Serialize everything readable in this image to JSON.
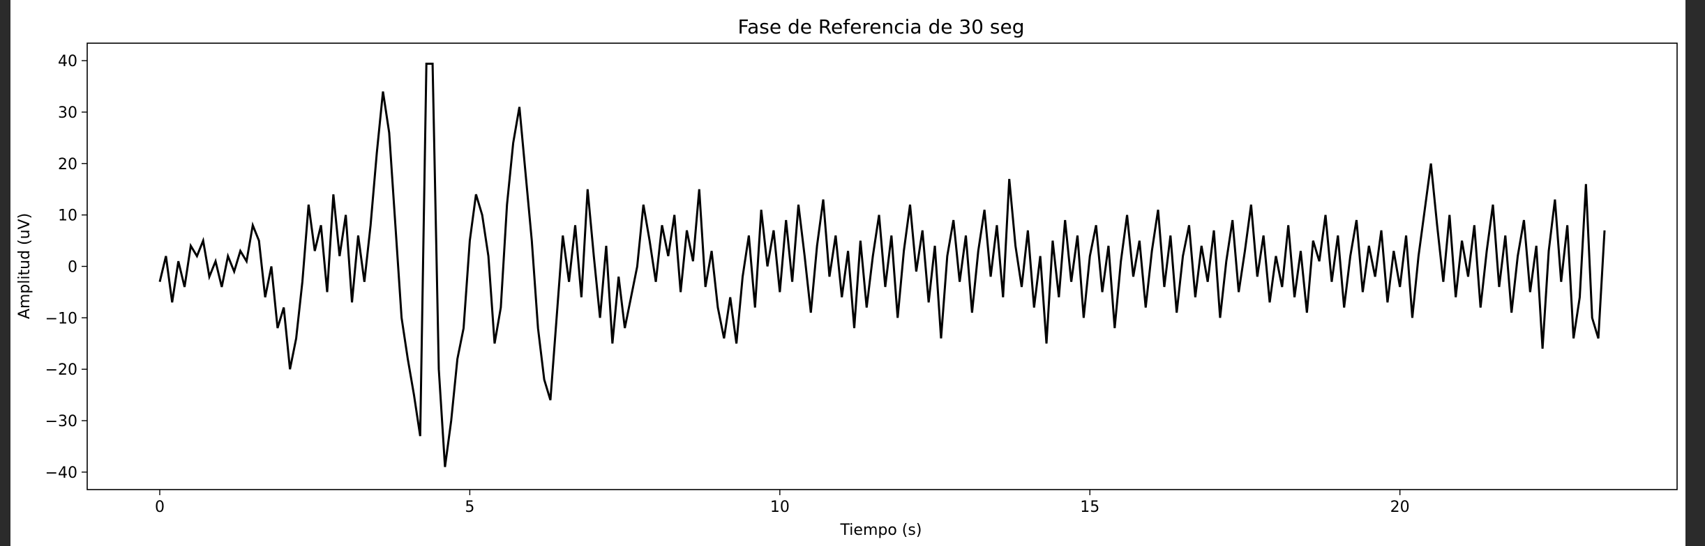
{
  "chart_data": {
    "type": "line",
    "title": "Fase de Referencia de 30 seg",
    "x_label": "Tiempo (s)",
    "y_label": "Amplitud (uV)",
    "color": "#000000",
    "x": [
      0,
      0.1,
      0.2,
      0.3,
      0.4,
      0.5,
      0.6,
      0.7,
      0.8,
      0.9,
      1,
      1.1,
      1.2,
      1.3,
      1.4,
      1.5,
      1.6,
      1.7,
      1.8,
      1.9,
      2,
      2.1,
      2.2,
      2.3,
      2.4,
      2.5,
      2.6,
      2.7,
      2.8,
      2.9,
      3,
      3.1,
      3.2,
      3.3,
      3.4,
      3.5,
      3.6,
      3.7,
      3.8,
      3.9,
      4,
      4.1,
      4.2,
      4.3,
      4.4,
      4.5,
      4.6,
      4.7,
      4.8,
      4.9,
      5,
      5.1,
      5.2,
      5.3,
      5.4,
      5.5,
      5.6,
      5.7,
      5.8,
      5.9,
      6,
      6.1,
      6.2,
      6.3,
      6.4,
      6.5,
      6.6,
      6.7,
      6.8,
      6.9,
      7,
      7.1,
      7.2,
      7.3,
      7.4,
      7.5,
      7.6,
      7.7,
      7.8,
      7.9,
      8,
      8.1,
      8.2,
      8.3,
      8.4,
      8.5,
      8.6,
      8.7,
      8.8,
      8.9,
      9,
      9.1,
      9.2,
      9.3,
      9.4,
      9.5,
      9.6,
      9.7,
      9.8,
      9.9,
      10,
      10.1,
      10.2,
      10.3,
      10.4,
      10.5,
      10.6,
      10.7,
      10.8,
      10.9,
      11,
      11.1,
      11.2,
      11.3,
      11.4,
      11.5,
      11.6,
      11.7,
      11.8,
      11.9,
      12,
      12.1,
      12.2,
      12.3,
      12.4,
      12.5,
      12.6,
      12.7,
      12.8,
      12.9,
      13,
      13.1,
      13.2,
      13.3,
      13.4,
      13.5,
      13.6,
      13.7,
      13.8,
      13.9,
      14,
      14.1,
      14.2,
      14.3,
      14.4,
      14.5,
      14.6,
      14.7,
      14.8,
      14.9,
      15,
      15.1,
      15.2,
      15.3,
      15.4,
      15.5,
      15.6,
      15.7,
      15.8,
      15.9,
      16,
      16.1,
      16.2,
      16.3,
      16.4,
      16.5,
      16.6,
      16.7,
      16.8,
      16.9,
      17,
      17.1,
      17.2,
      17.3,
      17.4,
      17.5,
      17.6,
      17.7,
      17.8,
      17.9,
      18,
      18.1,
      18.2,
      18.3,
      18.4,
      18.5,
      18.6,
      18.7,
      18.8,
      18.9,
      19,
      19.1,
      19.2,
      19.3,
      19.4,
      19.5,
      19.6,
      19.7,
      19.8,
      19.9,
      20,
      20.1,
      20.2,
      20.3,
      20.4,
      20.5,
      20.6,
      20.7,
      20.8,
      20.9,
      21,
      21.1,
      21.2,
      21.3,
      21.4,
      21.5,
      21.6,
      21.7,
      21.8,
      21.9,
      22,
      22.1,
      22.2,
      22.3,
      22.4,
      22.5,
      22.6,
      22.7,
      22.8,
      22.9,
      23,
      23.1,
      23.2,
      23.3
    ],
    "values": [
      -3,
      2,
      -7,
      1,
      -4,
      4,
      2,
      5,
      -2,
      1,
      -4,
      2,
      -1,
      3,
      1,
      8,
      5,
      -6,
      0,
      -12,
      -8,
      -20,
      -14,
      -3,
      12,
      3,
      8,
      -5,
      14,
      2,
      10,
      -7,
      6,
      -3,
      8,
      22,
      34,
      26,
      8,
      -10,
      -18,
      -25,
      -33,
      39.4,
      39.4,
      -20,
      -39,
      -30,
      -18,
      -12,
      5,
      14,
      10,
      2,
      -15,
      -8,
      12,
      24,
      31,
      18,
      5,
      -12,
      -22,
      -26,
      -10,
      6,
      -3,
      8,
      -6,
      15,
      2,
      -10,
      4,
      -15,
      -2,
      -12,
      -6,
      0,
      12,
      5,
      -3,
      8,
      2,
      10,
      -5,
      7,
      1,
      15,
      -4,
      3,
      -8,
      -14,
      -6,
      -15,
      -2,
      6,
      -8,
      11,
      0,
      7,
      -5,
      9,
      -3,
      12,
      2,
      -9,
      4,
      13,
      -2,
      6,
      -6,
      3,
      -12,
      5,
      -8,
      2,
      10,
      -4,
      6,
      -10,
      3,
      12,
      -1,
      7,
      -7,
      4,
      -14,
      2,
      9,
      -3,
      6,
      -9,
      3,
      11,
      -2,
      8,
      -6,
      17,
      4,
      -4,
      7,
      -8,
      2,
      -15,
      5,
      -6,
      9,
      -3,
      6,
      -10,
      2,
      8,
      -5,
      4,
      -12,
      1,
      10,
      -2,
      5,
      -8,
      3,
      11,
      -4,
      6,
      -9,
      2,
      8,
      -6,
      4,
      -3,
      7,
      -10,
      1,
      9,
      -5,
      3,
      12,
      -2,
      6,
      -7,
      2,
      -4,
      8,
      -6,
      3,
      -9,
      5,
      1,
      10,
      -3,
      6,
      -8,
      2,
      9,
      -5,
      4,
      -2,
      7,
      -7,
      3,
      -4,
      6,
      -10,
      2,
      11,
      20,
      8,
      -3,
      10,
      -6,
      5,
      -2,
      8,
      -8,
      3,
      12,
      -4,
      6,
      -9,
      2,
      9,
      -5,
      4,
      -16,
      3,
      13,
      -3,
      8,
      -14,
      -6,
      16,
      -10,
      -14,
      7
    ],
    "xlim": [
      -1.17,
      24.47
    ],
    "ylim": [
      -43.4,
      43.4
    ],
    "xticks": [
      0,
      5,
      10,
      15,
      20
    ],
    "yticks": [
      {
        "value": -40,
        "label": "−40"
      },
      {
        "value": -30,
        "label": "−30"
      },
      {
        "value": -20,
        "label": "−20"
      },
      {
        "value": -10,
        "label": "−10"
      },
      0,
      10,
      20,
      30,
      40
    ],
    "grid": false
  }
}
